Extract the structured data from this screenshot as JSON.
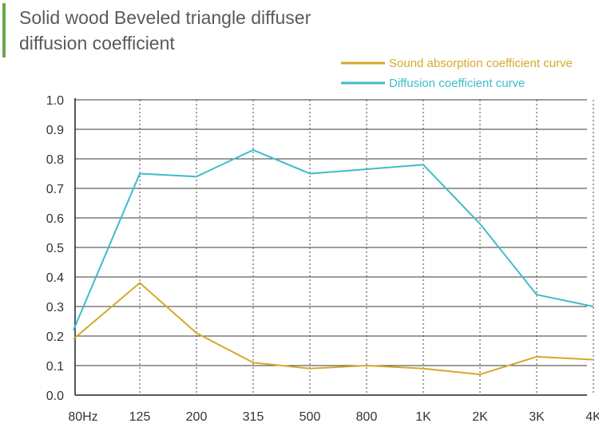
{
  "header": {
    "title_line1": "Solid wood Beveled triangle diffuser",
    "title_line2": "diffusion coefficient",
    "accent_color": "#6aa84f"
  },
  "chart_data": {
    "type": "line",
    "categories": [
      "80Hz",
      "125",
      "200",
      "315",
      "500",
      "800",
      "1K",
      "2K",
      "3K",
      "4K"
    ],
    "series": [
      {
        "name": "Sound absorption coefficient curve",
        "color": "#d4aa2a",
        "values": [
          0.19,
          0.38,
          0.21,
          0.11,
          0.09,
          0.1,
          0.09,
          0.07,
          0.13,
          0.12
        ]
      },
      {
        "name": "Diffusion coefficient curve",
        "color": "#3dbdc9",
        "values": [
          0.22,
          0.75,
          0.74,
          0.83,
          0.75,
          0.765,
          0.78,
          0.58,
          0.34,
          0.3
        ]
      }
    ],
    "yticks": [
      "0.0",
      "0.1",
      "0.2",
      "0.3",
      "0.4",
      "0.5",
      "0.6",
      "0.7",
      "0.8",
      "0.9",
      "1.0"
    ],
    "ylim": [
      0,
      1.0
    ],
    "grid": true,
    "legend_position": "top-right",
    "xlabel": "",
    "ylabel": ""
  }
}
